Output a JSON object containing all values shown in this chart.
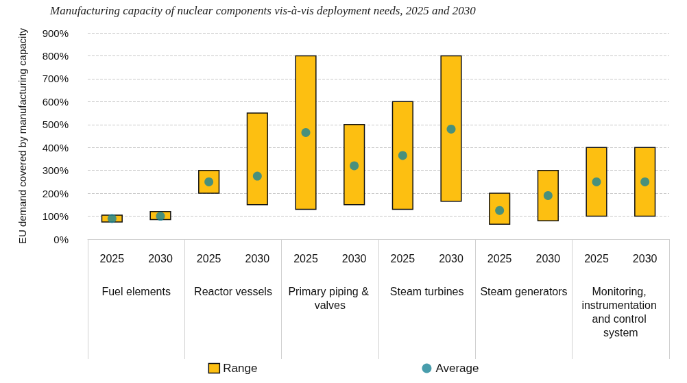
{
  "chart_data": {
    "type": "bar",
    "title": "Manufacturing capacity of nuclear components vis-à-vis deployment needs, 2025 and 2030",
    "ylabel": "EU demand covered by manufacturing capacity",
    "categories": [
      "2025",
      "2030",
      "2025",
      "2030",
      "2025",
      "2030",
      "2025",
      "2030",
      "2025",
      "2030",
      "2025",
      "2030"
    ],
    "annotations": [
      "Fuel elements",
      "Reactor vessels",
      "Primary piping & valves",
      "Steam turbines",
      "Steam generators",
      "Monitoring, instrumentation and control system"
    ],
    "series": [
      {
        "name": "Range",
        "color": "#fdbf11",
        "base": [
          75,
          85,
          200,
          150,
          130,
          150,
          130,
          165,
          65,
          80,
          100,
          100
        ],
        "values": [
          30,
          35,
          100,
          400,
          670,
          350,
          470,
          635,
          135,
          220,
          300,
          300
        ]
      },
      {
        "name": "Average",
        "type": "scatter",
        "color": "#1a8597",
        "values": [
          90,
          100,
          250,
          275,
          465,
          320,
          365,
          480,
          125,
          190,
          250,
          250
        ]
      }
    ],
    "ylim": [
      0,
      900
    ],
    "yticks": [
      {
        "value": 0,
        "label": "0%"
      },
      {
        "value": 100,
        "label": "100%"
      },
      {
        "value": 200,
        "label": "200%"
      },
      {
        "value": 300,
        "label": "300%"
      },
      {
        "value": 400,
        "label": "400%"
      },
      {
        "value": 500,
        "label": "500%"
      },
      {
        "value": 600,
        "label": "600%"
      },
      {
        "value": 700,
        "label": "700%"
      },
      {
        "value": 800,
        "label": "800%"
      },
      {
        "value": 900,
        "label": "900%"
      }
    ],
    "grid": "y",
    "legend": "bottom",
    "marker": "circle"
  }
}
